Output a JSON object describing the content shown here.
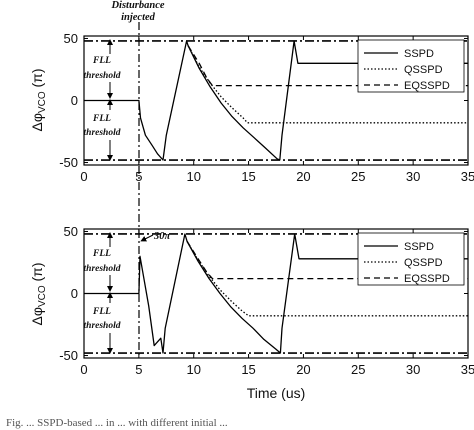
{
  "chart_data": [
    {
      "type": "line",
      "xlabel": "",
      "ylabel": "Δφ_VCO (π)",
      "ylabel_main": "Δφ",
      "ylabel_sub": "VCO",
      "ylabel_unit": "(π)",
      "xlim": [
        0,
        35
      ],
      "ylim": [
        -52,
        52
      ],
      "xticks": [
        "0",
        "5",
        "10",
        "15",
        "20",
        "25",
        "30",
        "35"
      ],
      "yticks": [
        "-50",
        "0",
        "50"
      ],
      "legend": {
        "placement": "top-right",
        "entries": [
          "SSPD",
          "QSSPD",
          "EQSSPD"
        ]
      },
      "annotations": [
        "Disturbance injected",
        "FLL threshold",
        "FLL threshold"
      ],
      "threshold_lines": [
        48,
        -48
      ],
      "disturbance_x": 5,
      "series": [
        {
          "name": "SSPD",
          "style": "solid",
          "x": [
            0,
            5,
            5.15,
            5.6,
            6.2,
            6.7,
            7.2,
            7.5,
            9.35,
            9.5,
            10.5,
            11.5,
            12.5,
            13.5,
            14.5,
            15.5,
            16.5,
            17.6,
            17.85,
            18.05,
            19.15,
            19.5,
            35
          ],
          "y": [
            0,
            0,
            -14,
            -28,
            -36,
            -43,
            -48,
            -28,
            48,
            44,
            26,
            11,
            -2,
            -13,
            -22,
            -30,
            -38,
            -47,
            -48,
            -28,
            48,
            30,
            30
          ]
        },
        {
          "name": "QSSPD",
          "style": "dotted",
          "x": [
            9.5,
            10.5,
            11.5,
            12.5,
            13.5,
            14.5,
            14.9,
            35
          ],
          "y": [
            44,
            27,
            14,
            3,
            -6,
            -14,
            -18,
            -18
          ]
        },
        {
          "name": "EQSSPD",
          "style": "dashed",
          "x": [
            9.5,
            10.5,
            11.2,
            11.7,
            35
          ],
          "y": [
            44,
            30,
            18,
            12,
            12
          ]
        }
      ]
    },
    {
      "type": "line",
      "xlabel": "Time (us)",
      "ylabel": "Δφ_VCO (π)",
      "ylabel_main": "Δφ",
      "ylabel_sub": "VCO",
      "ylabel_unit": "(π)",
      "xlim": [
        0,
        35
      ],
      "ylim": [
        -52,
        52
      ],
      "xticks": [
        "0",
        "5",
        "10",
        "15",
        "20",
        "25",
        "30",
        "35"
      ],
      "yticks": [
        "-50",
        "0",
        "50"
      ],
      "legend": {
        "placement": "top-right",
        "entries": [
          "SSPD",
          "QSSPD",
          "EQSSPD"
        ]
      },
      "annotations": [
        "FLL threshold",
        "FLL threshold",
        "30π"
      ],
      "threshold_lines": [
        48,
        -48
      ],
      "disturbance_x": 5,
      "series": [
        {
          "name": "SSPD",
          "style": "solid",
          "x": [
            0,
            5,
            5.1,
            5.9,
            6.4,
            7.0,
            7.2,
            7.4,
            9.2,
            9.4,
            10.4,
            11.4,
            12.4,
            13.4,
            14.4,
            15.4,
            16.4,
            17.5,
            17.9,
            18.05,
            19.2,
            19.6,
            35
          ],
          "y": [
            0,
            0,
            30,
            -10,
            -42,
            -36,
            -48,
            -28,
            48,
            42,
            26,
            12,
            0,
            -11,
            -20,
            -28,
            -37,
            -45,
            -48,
            -28,
            48,
            28,
            28
          ]
        },
        {
          "name": "QSSPD",
          "style": "dotted",
          "x": [
            9.4,
            10.4,
            11.4,
            12.4,
            13.4,
            14.4,
            15.0,
            35
          ],
          "y": [
            42,
            27,
            14,
            3,
            -6,
            -14,
            -18,
            -18
          ]
        },
        {
          "name": "EQSSPD",
          "style": "dashed",
          "x": [
            9.4,
            10.4,
            11.2,
            11.7,
            35
          ],
          "y": [
            42,
            28,
            17,
            12,
            12
          ]
        }
      ]
    }
  ],
  "caption_fragment": "Fig. ... SSPD-based ... in ... with different initial ..."
}
